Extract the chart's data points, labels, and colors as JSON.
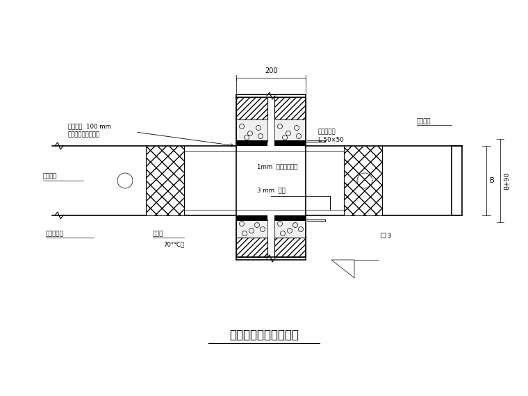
{
  "title": "水平风管穿变形缝做法",
  "bg_color": "#ffffff",
  "annotations": {
    "dim_200": "200",
    "label1a": "碎石棉绳  100 mm",
    "label1b": "表面用水泥沙浆抹平",
    "label3": "子型角钢框",
    "label4": "L 50×50",
    "label5": "1mm  镀锌钢板套管",
    "label6": "3 mm  钢板",
    "label7": "镀锌钢板",
    "label8": "柔性钢接头",
    "label9": "防火阀",
    "label10": "70°℃关",
    "label11": "镀锌钢板",
    "labelB": "B",
    "labelB90": "B+90"
  }
}
